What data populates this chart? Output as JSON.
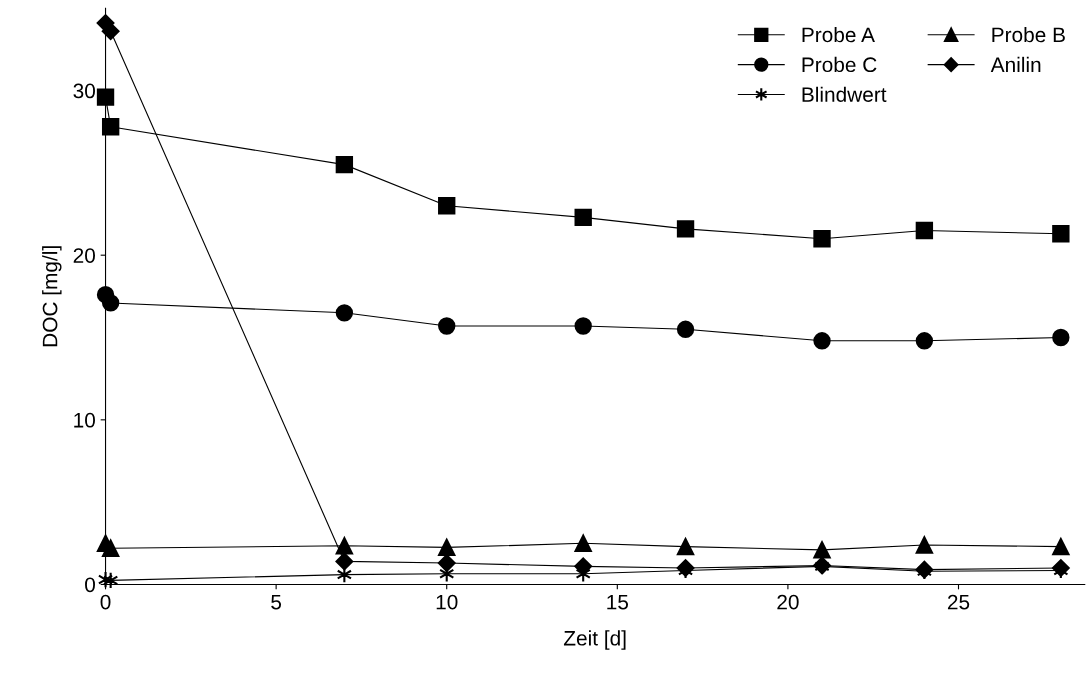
{
  "chart_data": {
    "type": "line",
    "xlabel": "Zeit [d]",
    "ylabel": "DOC [mg/l]",
    "x": [
      0,
      0.15,
      7,
      10,
      14,
      17,
      21,
      24,
      28
    ],
    "series": [
      {
        "name": "Probe A",
        "color": "#000000",
        "marker": "square",
        "values": [
          29.6,
          27.8,
          25.5,
          23.0,
          22.3,
          21.6,
          21.0,
          21.5,
          21.3
        ]
      },
      {
        "name": "Probe B",
        "color": "#000000",
        "marker": "triangle",
        "values": [
          2.5,
          2.2,
          2.35,
          2.25,
          2.5,
          2.3,
          2.1,
          2.4,
          2.3
        ]
      },
      {
        "name": "Probe C",
        "color": "#000000",
        "marker": "circle",
        "values": [
          17.6,
          17.1,
          16.5,
          15.7,
          15.7,
          15.5,
          14.8,
          14.8,
          15.0
        ]
      },
      {
        "name": "Anilin",
        "color": "#000000",
        "marker": "diamond",
        "values": [
          34.1,
          33.6,
          1.4,
          1.3,
          1.1,
          1.0,
          1.15,
          0.9,
          1.0
        ]
      },
      {
        "name": "Blindwert",
        "color": "#000000",
        "marker": "cross",
        "values": [
          0.3,
          0.25,
          0.6,
          0.65,
          0.65,
          0.85,
          1.1,
          0.8,
          0.85
        ]
      }
    ],
    "xlim": [
      0,
      28.7
    ],
    "xticks": [
      0,
      5,
      10,
      15,
      20,
      25
    ],
    "ylim": [
      0,
      35
    ],
    "yticks": [
      0,
      10,
      20,
      30
    ],
    "grid": false,
    "legend": "top right",
    "line_style": "solid"
  }
}
